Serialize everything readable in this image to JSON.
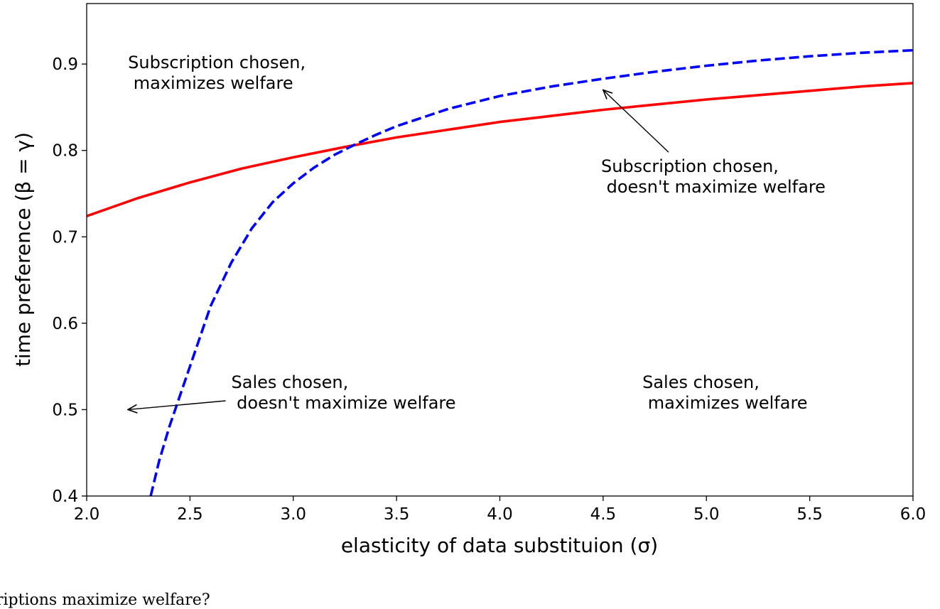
{
  "chart_data": {
    "type": "line",
    "xlabel": "elasticity of data substituion (σ)",
    "ylabel": "time preference (β = γ)",
    "xlim": [
      2.0,
      6.0
    ],
    "ylim": [
      0.4,
      0.97
    ],
    "xticks": [
      "2.0",
      "2.5",
      "3.0",
      "3.5",
      "4.0",
      "4.5",
      "5.0",
      "5.5",
      "6.0"
    ],
    "yticks": [
      "0.4",
      "0.5",
      "0.6",
      "0.7",
      "0.8",
      "0.9"
    ],
    "grid": false,
    "series": [
      {
        "style": "solid",
        "color": "#ff0000",
        "x": [
          2.0,
          2.25,
          2.5,
          2.75,
          3.0,
          3.25,
          3.5,
          3.75,
          4.0,
          4.25,
          4.5,
          4.75,
          5.0,
          5.25,
          5.5,
          5.75,
          6.0
        ],
        "y": [
          0.724,
          0.745,
          0.763,
          0.779,
          0.792,
          0.804,
          0.815,
          0.824,
          0.833,
          0.84,
          0.847,
          0.853,
          0.859,
          0.864,
          0.869,
          0.874,
          0.878
        ]
      },
      {
        "style": "dashed",
        "color": "#0000ff",
        "x": [
          2.31,
          2.35,
          2.4,
          2.45,
          2.5,
          2.6,
          2.7,
          2.8,
          2.9,
          3.0,
          3.1,
          3.2,
          3.3,
          3.4,
          3.5,
          3.75,
          4.0,
          4.25,
          4.5,
          4.75,
          5.0,
          5.25,
          5.5,
          5.75,
          6.0
        ],
        "y": [
          0.4,
          0.44,
          0.48,
          0.515,
          0.55,
          0.62,
          0.67,
          0.71,
          0.74,
          0.762,
          0.78,
          0.795,
          0.807,
          0.818,
          0.828,
          0.848,
          0.863,
          0.874,
          0.883,
          0.891,
          0.898,
          0.904,
          0.909,
          0.913,
          0.916
        ]
      }
    ],
    "annotations": [
      {
        "lines": [
          "Subscription chosen,",
          " maximizes welfare"
        ],
        "x": 2.2,
        "y": 0.895
      },
      {
        "lines": [
          "Subscription chosen,",
          " doesn't maximize welfare"
        ],
        "x": 4.49,
        "y": 0.775,
        "arrow_to": [
          4.5,
          0.87
        ]
      },
      {
        "lines": [
          "Sales chosen,",
          " doesn't maximize welfare"
        ],
        "x": 2.7,
        "y": 0.525,
        "arrow_to": [
          2.2,
          0.5
        ]
      },
      {
        "lines": [
          "Sales chosen,",
          " maximizes welfare"
        ],
        "x": 4.69,
        "y": 0.525
      }
    ]
  },
  "footer_text": "riptions maximize welfare?"
}
